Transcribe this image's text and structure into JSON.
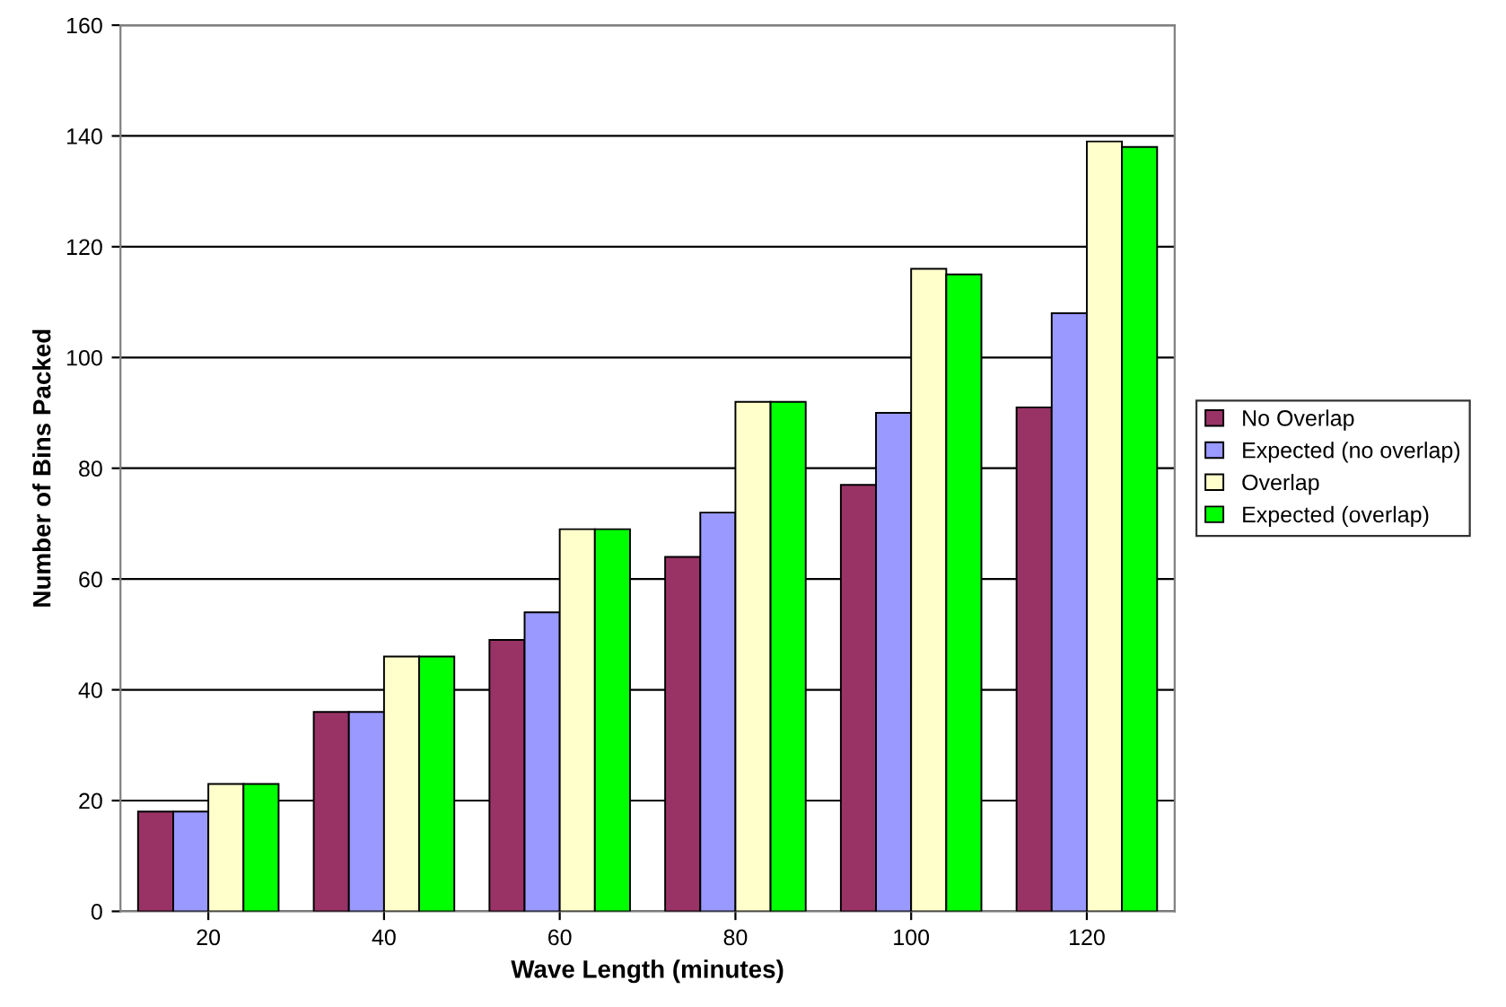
{
  "chart_data": {
    "type": "bar",
    "xlabel": "Wave Length (minutes)",
    "ylabel": "Number of Bins Packed",
    "categories": [
      "20",
      "40",
      "60",
      "80",
      "100",
      "120"
    ],
    "series": [
      {
        "name": "No Overlap",
        "color": "#993366",
        "values": [
          18,
          36,
          49,
          64,
          77,
          91
        ]
      },
      {
        "name": "Expected (no overlap)",
        "color": "#9999ff",
        "values": [
          18,
          36,
          54,
          72,
          90,
          108
        ]
      },
      {
        "name": "Overlap",
        "color": "#ffffcc",
        "values": [
          23,
          46,
          69,
          92,
          116,
          139
        ]
      },
      {
        "name": "Expected (overlap)",
        "color": "#00ff00",
        "values": [
          23,
          46,
          69,
          92,
          115,
          138
        ]
      }
    ],
    "ylim": [
      0,
      160
    ],
    "yticks": [
      0,
      20,
      40,
      60,
      80,
      100,
      120,
      140,
      160
    ],
    "grid": "y",
    "legend": "right"
  }
}
